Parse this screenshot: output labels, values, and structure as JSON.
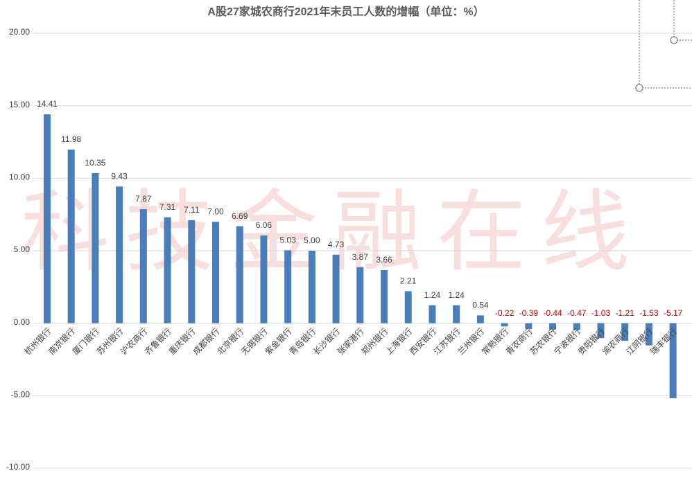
{
  "chart_data": {
    "type": "bar",
    "title": "A股27家城农商行2021年末员工人数的增幅（单位：%）",
    "watermark": "科技金融在线",
    "categories": [
      "杭州银行",
      "南京银行",
      "厦门银行",
      "苏州银行",
      "沪农商行",
      "齐鲁银行",
      "重庆银行",
      "成都银行",
      "北京银行",
      "无锡银行",
      "紫金银行",
      "青岛银行",
      "长沙银行",
      "张家港行",
      "郑州银行",
      "上海银行",
      "西安银行",
      "江苏银行",
      "兰州银行",
      "常熟银行",
      "青农商行",
      "苏农银行",
      "宁波银行",
      "贵阳银行",
      "渝农商行",
      "江阴银行",
      "瑞丰银行"
    ],
    "values": [
      14.41,
      11.98,
      10.35,
      9.43,
      7.87,
      7.31,
      7.11,
      7.0,
      6.69,
      6.06,
      5.03,
      5.0,
      4.73,
      3.87,
      3.66,
      2.21,
      1.24,
      1.24,
      0.54,
      -0.22,
      -0.39,
      -0.44,
      -0.47,
      -1.03,
      -1.21,
      -1.53,
      -5.17
    ],
    "value_labels": [
      "14.41",
      "11.98",
      "10.35",
      "9.43",
      "7.87",
      "7.31",
      "7.11",
      "7.00",
      "6.69",
      "6.06",
      "5.03",
      "5.00",
      "4.73",
      "3.87",
      "3.66",
      "2.21",
      "1.24",
      "1.24",
      "0.54",
      "-0.22",
      "-0.39",
      "-0.44",
      "-0.47",
      "-1.03",
      "-1.21",
      "-1.53",
      "-5.17"
    ],
    "color": "#4a7ebb",
    "negative_label_color": "#c00000",
    "ylim": [
      -10,
      20
    ],
    "yticks": [
      {
        "value": -10,
        "label": "-10.00"
      },
      {
        "value": -5,
        "label": "-5.00"
      },
      {
        "value": 0,
        "label": "0.00"
      },
      {
        "value": 5,
        "label": "5.00"
      },
      {
        "value": 10,
        "label": "10.00"
      },
      {
        "value": 15,
        "label": "15.00"
      },
      {
        "value": 20,
        "label": "20.00"
      }
    ],
    "grid": true
  }
}
